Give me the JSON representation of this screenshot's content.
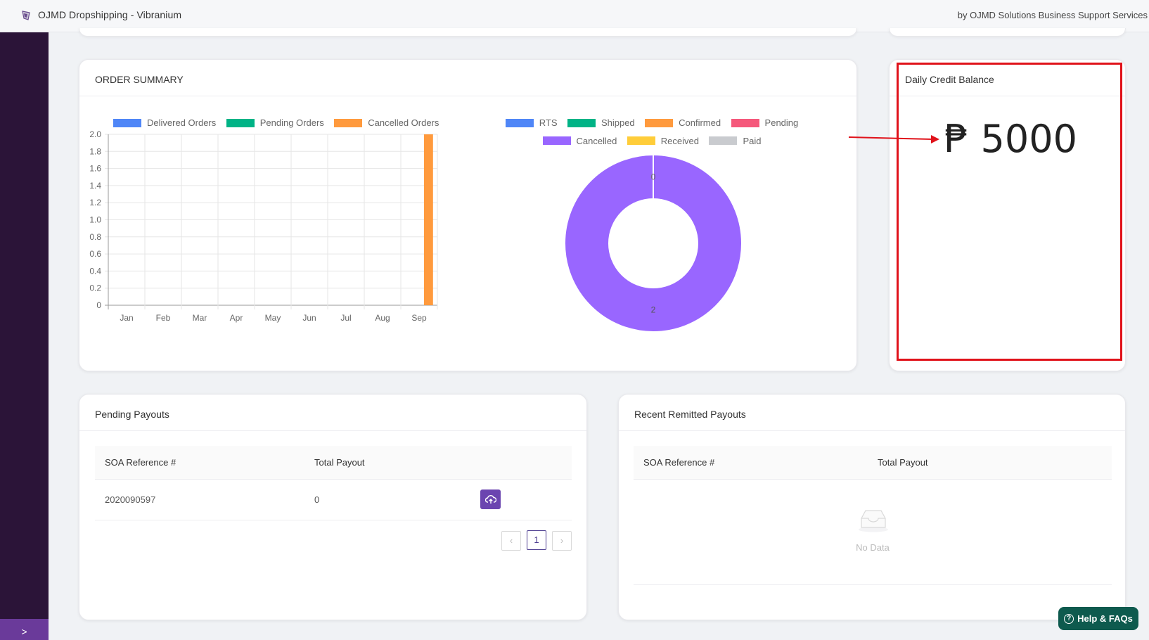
{
  "header": {
    "app_title": "OJMD Dropshipping - Vibranium",
    "byline": "by OJMD Solutions Business Support Services"
  },
  "sidebar": {
    "toggle_label": ">"
  },
  "order_summary": {
    "title": "ORDER SUMMARY"
  },
  "chart_data": [
    {
      "type": "bar",
      "title": "",
      "categories": [
        "Jan",
        "Feb",
        "Mar",
        "Apr",
        "May",
        "Jun",
        "Jul",
        "Aug",
        "Sep"
      ],
      "series": [
        {
          "name": "Delivered Orders",
          "color": "#4f86f7",
          "values": [
            0,
            0,
            0,
            0,
            0,
            0,
            0,
            0,
            0
          ]
        },
        {
          "name": "Pending Orders",
          "color": "#00b386",
          "values": [
            0,
            0,
            0,
            0,
            0,
            0,
            0,
            0,
            0
          ]
        },
        {
          "name": "Cancelled Orders",
          "color": "#ff9a3d",
          "values": [
            0,
            0,
            0,
            0,
            0,
            0,
            0,
            0,
            2
          ]
        }
      ],
      "yticks": [
        "2.0",
        "1.8",
        "1.6",
        "1.4",
        "1.2",
        "1.0",
        "0.8",
        "0.6",
        "0.4",
        "0.2",
        "0"
      ],
      "ylim": [
        0,
        2
      ],
      "grid": true,
      "legend": "top"
    },
    {
      "type": "pie",
      "variant": "doughnut",
      "legend": "top",
      "slices": [
        {
          "name": "RTS",
          "color": "#4f86f7",
          "value": 0
        },
        {
          "name": "Shipped",
          "color": "#00b386",
          "value": 0
        },
        {
          "name": "Confirmed",
          "color": "#ff9a3d",
          "value": 0
        },
        {
          "name": "Pending",
          "color": "#f5587b",
          "value": 0
        },
        {
          "name": "Cancelled",
          "color": "#9966ff",
          "value": 2
        },
        {
          "name": "Received",
          "color": "#ffcd3a",
          "value": 0
        },
        {
          "name": "Paid",
          "color": "#c9cbcf",
          "value": 0
        }
      ],
      "data_labels": [
        "0",
        "2"
      ]
    }
  ],
  "credit": {
    "title": "Daily Credit Balance",
    "value": "₱ 5000",
    "highlight_color": "#e0121a"
  },
  "pending_payouts": {
    "title": "Pending Payouts",
    "columns": [
      "SOA Reference #",
      "Total Payout"
    ],
    "rows": [
      {
        "ref": "2020090597",
        "total": "0"
      }
    ],
    "pagination": {
      "current": "1",
      "prev": "‹",
      "next": "›"
    }
  },
  "remitted_payouts": {
    "title": "Recent Remitted Payouts",
    "columns": [
      "SOA Reference #",
      "Total Payout"
    ],
    "empty_text": "No Data"
  },
  "help": {
    "label": "Help & FAQs"
  }
}
